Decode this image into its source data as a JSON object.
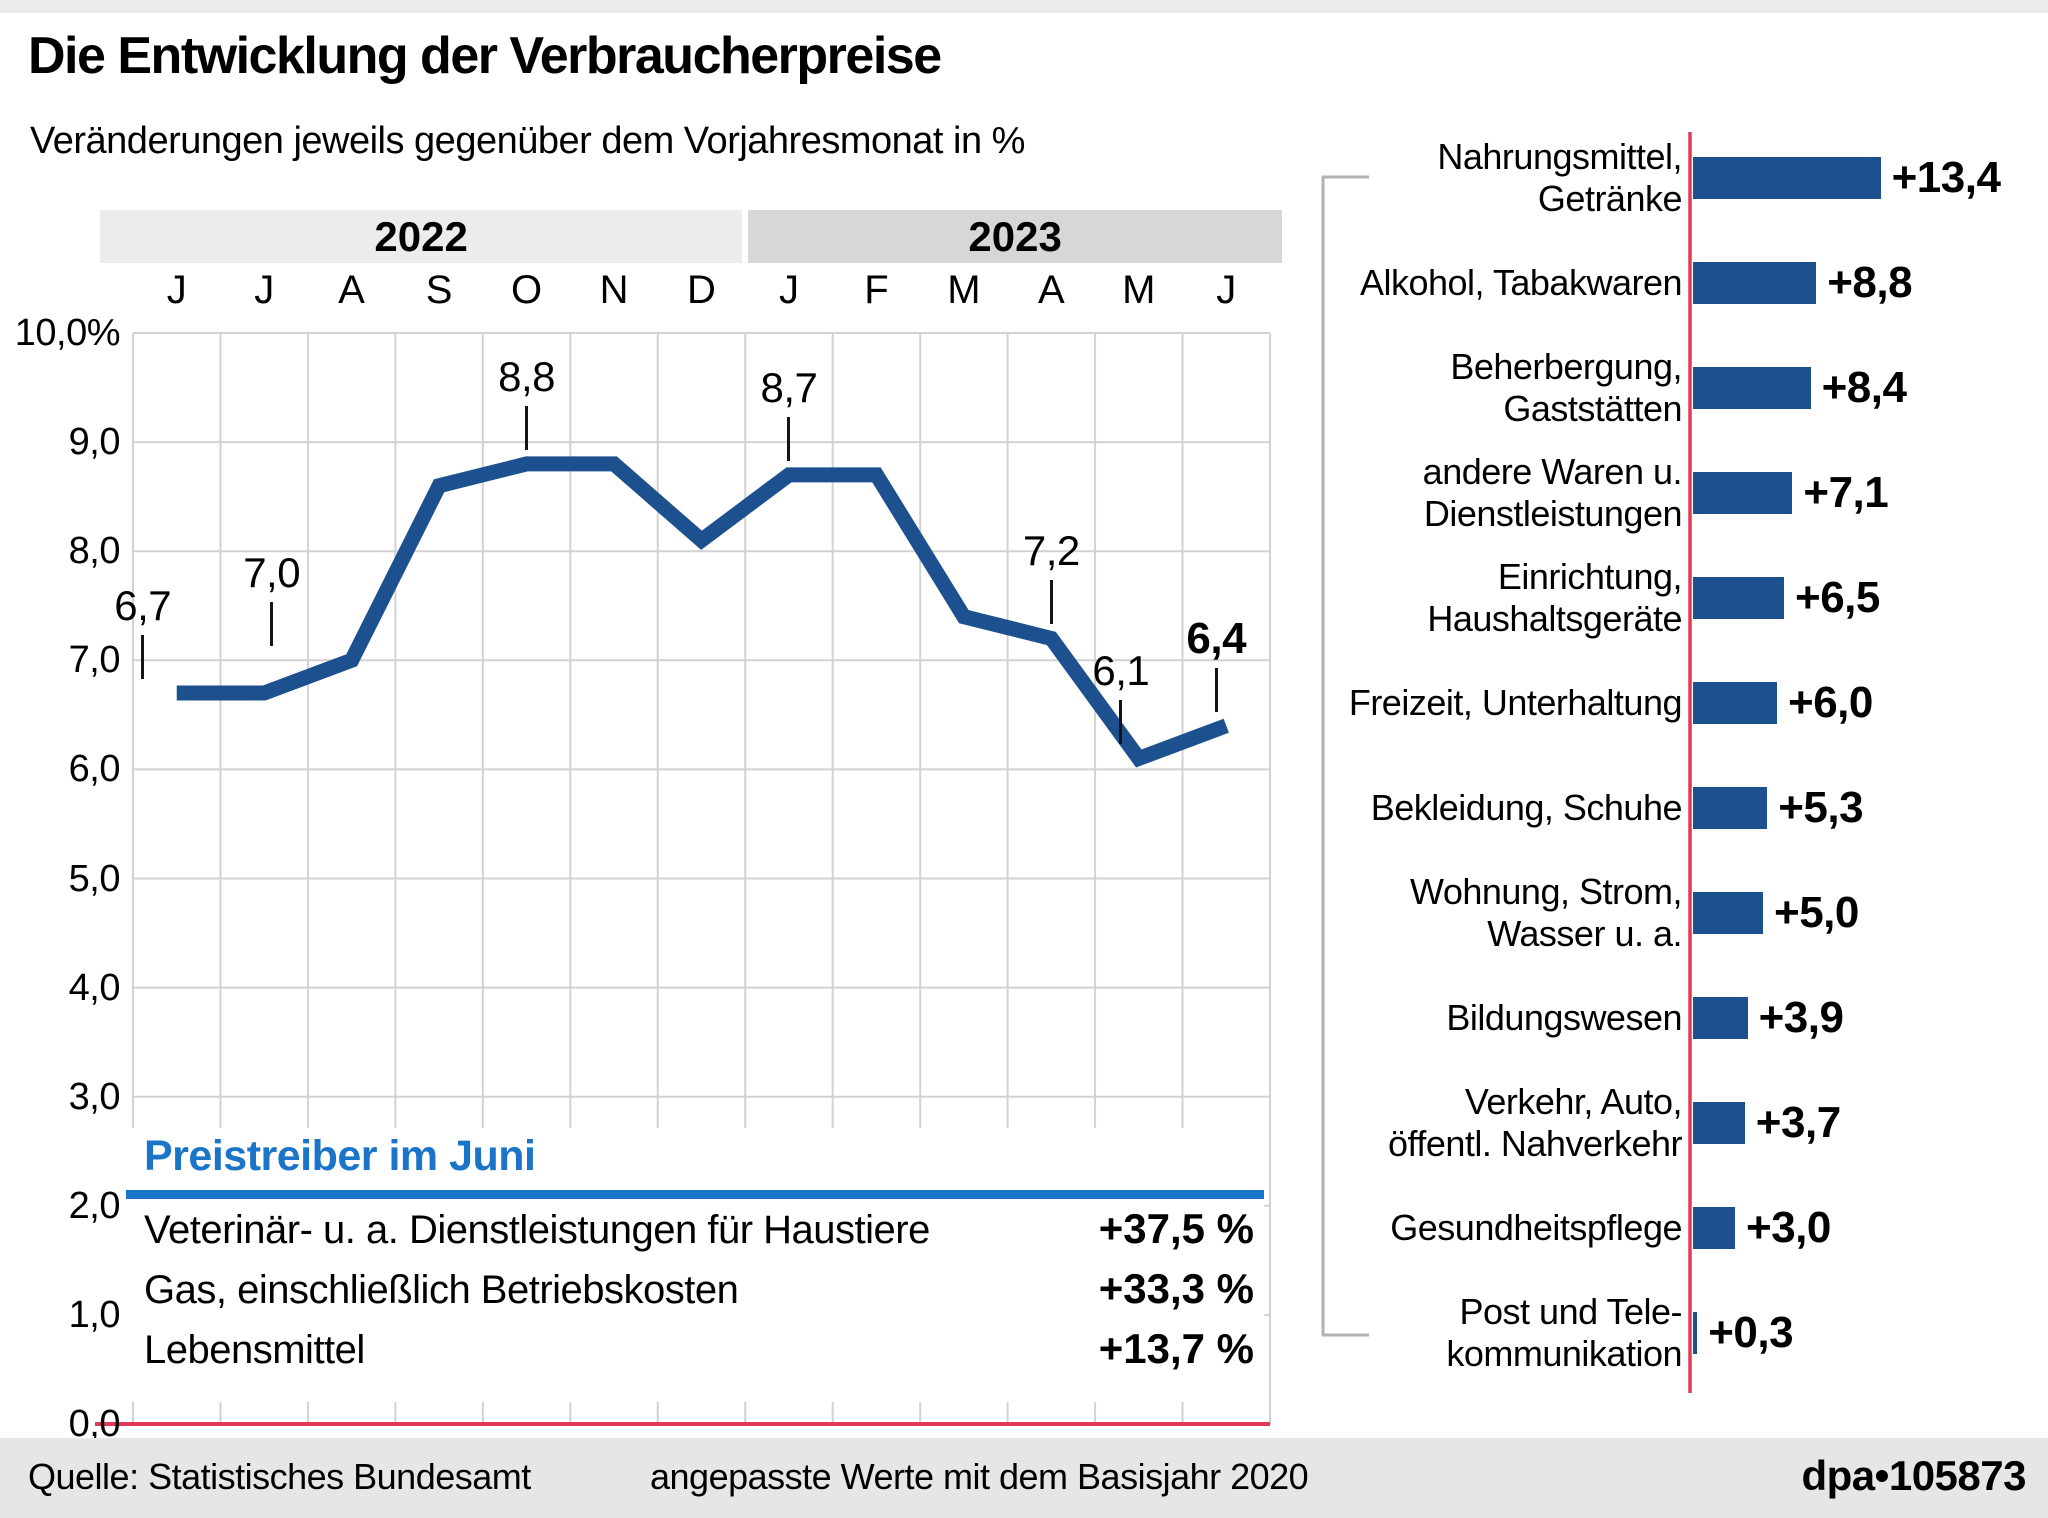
{
  "header": {
    "title": "Die Entwicklung der Verbraucherpreise",
    "subtitle": "Veränderungen jeweils gegenüber dem Vorjahresmonat in %"
  },
  "chart_data": [
    {
      "type": "line",
      "x": [
        "J",
        "J",
        "A",
        "S",
        "O",
        "N",
        "D",
        "J",
        "F",
        "M",
        "A",
        "M",
        "J"
      ],
      "year_groups": [
        {
          "label": "2022",
          "span": 7
        },
        {
          "label": "2023",
          "span": 6
        }
      ],
      "values": [
        6.7,
        6.7,
        7.0,
        8.6,
        8.8,
        8.8,
        8.1,
        8.7,
        8.7,
        7.4,
        7.2,
        6.1,
        6.4
      ],
      "ylim": [
        0,
        10
      ],
      "y_ticks": [
        {
          "v": 10,
          "label": "10,0%"
        },
        {
          "v": 9,
          "label": "9,0"
        },
        {
          "v": 8,
          "label": "8,0"
        },
        {
          "v": 7,
          "label": "7,0"
        },
        {
          "v": 6,
          "label": "6,0"
        },
        {
          "v": 5,
          "label": "5,0"
        },
        {
          "v": 4,
          "label": "4,0"
        },
        {
          "v": 3,
          "label": "3,0"
        },
        {
          "v": 2,
          "label": "2,0"
        },
        {
          "v": 1,
          "label": "1,0"
        },
        {
          "v": 0,
          "label": "0,0"
        }
      ],
      "grid": true,
      "labeled_points": [
        {
          "i": 0,
          "text": "6,7",
          "dx": -34
        },
        {
          "i": 2,
          "text": "7,0",
          "dx": -80
        },
        {
          "i": 4,
          "text": "8,8",
          "dx": 0
        },
        {
          "i": 7,
          "text": "8,7",
          "dx": 0
        },
        {
          "i": 10,
          "text": "7,2",
          "dx": 0
        },
        {
          "i": 11,
          "text": "6,1",
          "dx": -18
        },
        {
          "i": 12,
          "text": "6,4",
          "dx": -10,
          "bold": true
        }
      ],
      "line_color": "#1d508f",
      "zero_axis_color": "#e03a56",
      "band_colors": [
        "#ececec",
        "#d7d7d7"
      ]
    },
    {
      "type": "bar",
      "orientation": "horizontal",
      "categories": [
        [
          "Nahrungsmittel,",
          "Getränke"
        ],
        [
          "Alkohol, Tabakwaren"
        ],
        [
          "Beherbergung,",
          "Gaststätten"
        ],
        [
          "andere Waren u.",
          "Dienstleistungen"
        ],
        [
          "Einrichtung,",
          "Haushaltsgeräte"
        ],
        [
          "Freizeit, Unterhaltung"
        ],
        [
          "Bekleidung, Schuhe"
        ],
        [
          "Wohnung, Strom,",
          "Wasser u. a."
        ],
        [
          "Bildungswesen"
        ],
        [
          "Verkehr, Auto,",
          "öffentl. Nahverkehr"
        ],
        [
          "Gesundheitspflege"
        ],
        [
          "Post und Tele-",
          "kommunikation"
        ]
      ],
      "values": [
        13.4,
        8.8,
        8.4,
        7.1,
        6.5,
        6.0,
        5.3,
        5.0,
        3.9,
        3.7,
        3.0,
        0.3
      ],
      "value_labels": [
        "+13,4",
        "+8,8",
        "+8,4",
        "+7,1",
        "+6,5",
        "+6,0",
        "+5,3",
        "+5,0",
        "+3,9",
        "+3,7",
        "+3,0",
        "+0,3"
      ],
      "xlim": [
        0,
        13.4
      ],
      "bar_color": "#1d508f",
      "axis_color": "#e03a56",
      "bracket_color": "#b0b0b0"
    }
  ],
  "price_drivers": {
    "heading": "Preistreiber im Juni",
    "accent_color": "#1a75c8",
    "items": [
      {
        "label": "Veterinär- u. a. Dienstleistungen für Haustiere",
        "value": "+37,5 %"
      },
      {
        "label": "Gas, einschließlich Betriebskosten",
        "value": "+33,3 %"
      },
      {
        "label": "Lebensmittel",
        "value": "+13,7 %"
      }
    ]
  },
  "footer": {
    "source": "Quelle: Statistisches Bundesamt",
    "note": "angepasste Werte mit dem Basisjahr 2020",
    "credit": "dpa•105873"
  }
}
